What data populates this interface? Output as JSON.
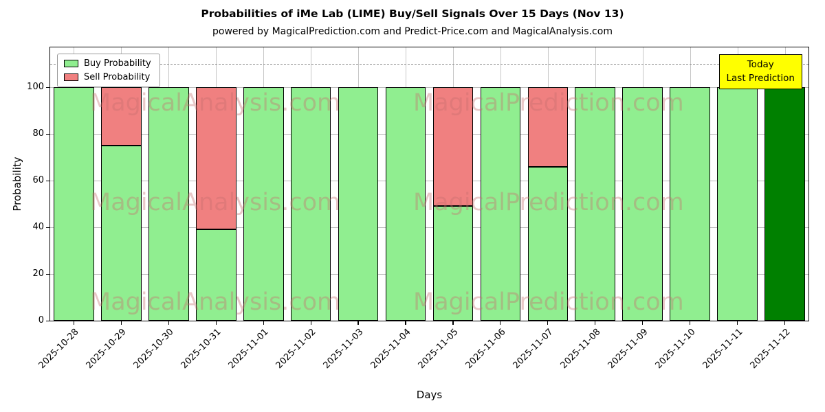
{
  "chart_data": {
    "type": "bar",
    "stacked": true,
    "title": "Probabilities of iMe Lab (LIME) Buy/Sell Signals Over 15 Days (Nov 13)",
    "subtitle": "powered by MagicalPrediction.com and Predict-Price.com and MagicalAnalysis.com",
    "xlabel": "Days",
    "ylabel": "Probability",
    "ylim": [
      0,
      117
    ],
    "yticks": [
      0,
      20,
      40,
      60,
      80,
      100
    ],
    "grid": true,
    "dashed_guideline_y": 110,
    "categories": [
      "2025-10-28",
      "2025-10-29",
      "2025-10-30",
      "2025-10-31",
      "2025-11-01",
      "2025-11-02",
      "2025-11-03",
      "2025-11-04",
      "2025-11-05",
      "2025-11-06",
      "2025-11-07",
      "2025-11-08",
      "2025-11-09",
      "2025-11-10",
      "2025-11-11",
      "2025-11-12"
    ],
    "series": [
      {
        "name": "Buy Probability",
        "color": "#90EE90",
        "values": [
          100,
          75,
          100,
          39,
          100,
          100,
          100,
          100,
          49,
          100,
          66,
          100,
          100,
          100,
          100,
          100
        ]
      },
      {
        "name": "Sell Probability",
        "color": "#F08080",
        "values": [
          0,
          25,
          0,
          61,
          0,
          0,
          0,
          0,
          51,
          0,
          34,
          0,
          0,
          0,
          0,
          0
        ]
      }
    ],
    "bar_edge_color": "#000000",
    "today_index": 15,
    "today_color": "#008000",
    "legend": {
      "position": "top-left",
      "items": [
        {
          "label": "Buy Probability",
          "color": "#90EE90"
        },
        {
          "label": "Sell Probability",
          "color": "#F08080"
        }
      ]
    },
    "annotation": {
      "line1": "Today",
      "line2": "Last Prediction",
      "bg_color": "#FFFF00"
    },
    "watermarks": {
      "left_text": "MagicalAnalysis.com",
      "right_text": "MagicalPrediction.com",
      "color": "#c87070"
    }
  }
}
